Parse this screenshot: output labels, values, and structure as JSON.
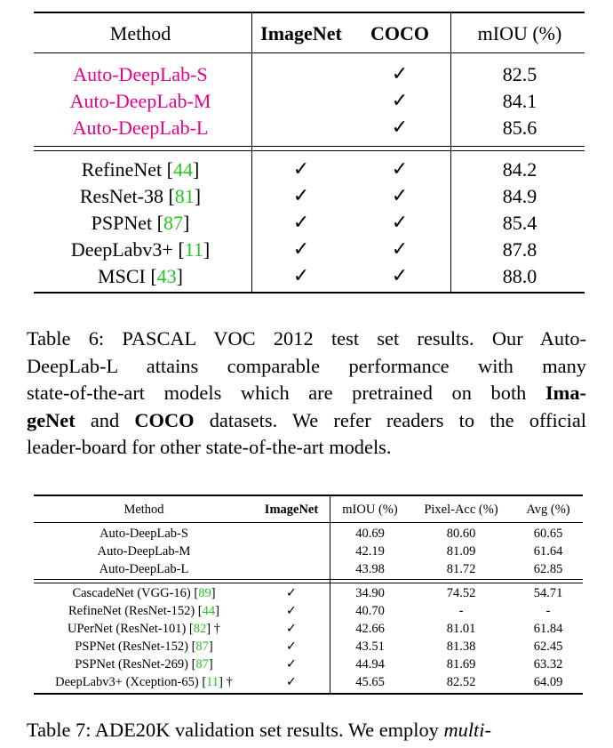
{
  "table6": {
    "headers": {
      "method": "Method",
      "imagenet": "ImageNet",
      "coco": "COCO",
      "miou": "mIOU (%)"
    },
    "check_glyph": "✓",
    "group1": [
      {
        "name": "Auto-DeepLab-S",
        "ref": "",
        "imagenet": "",
        "coco": "✓",
        "miou": "82.5"
      },
      {
        "name": "Auto-DeepLab-M",
        "ref": "",
        "imagenet": "",
        "coco": "✓",
        "miou": "84.1"
      },
      {
        "name": "Auto-DeepLab-L",
        "ref": "",
        "imagenet": "",
        "coco": "✓",
        "miou": "85.6"
      }
    ],
    "group2": [
      {
        "name": "RefineNet",
        "ref": "44",
        "imagenet": "✓",
        "coco": "✓",
        "miou": "84.2"
      },
      {
        "name": "ResNet-38",
        "ref": "81",
        "imagenet": "✓",
        "coco": "✓",
        "miou": "84.9"
      },
      {
        "name": "PSPNet",
        "ref": "87",
        "imagenet": "✓",
        "coco": "✓",
        "miou": "85.4"
      },
      {
        "name": "DeepLabv3+",
        "ref": "11",
        "imagenet": "✓",
        "coco": "✓",
        "miou": "87.8"
      },
      {
        "name": "MSCI",
        "ref": "43",
        "imagenet": "✓",
        "coco": "✓",
        "miou": "88.0"
      }
    ],
    "caption": {
      "line1": "Table 6: PASCAL VOC 2012 test set results. Our Auto-",
      "line2": "DeepLab-L attains comparable performance with many",
      "line3_pre": "state-of-the-art models which are pretrained on both ",
      "line3_bold": "Ima-",
      "line4_bold1": "geNet",
      "line4_mid": " and ",
      "line4_bold2": "COCO",
      "line4_post": " datasets. We refer readers to the official",
      "line5": "leader-board for other state-of-the-art models."
    }
  },
  "table7": {
    "headers": {
      "method": "Method",
      "imagenet": "ImageNet",
      "miou": "mIOU (%)",
      "pixacc": "Pixel-Acc (%)",
      "avg": "Avg (%)"
    },
    "group1": [
      {
        "name": "Auto-DeepLab-S",
        "ref": "",
        "suffix": "",
        "imagenet": "",
        "miou": "40.69",
        "pixacc": "80.60",
        "avg": "60.65"
      },
      {
        "name": "Auto-DeepLab-M",
        "ref": "",
        "suffix": "",
        "imagenet": "",
        "miou": "42.19",
        "pixacc": "81.09",
        "avg": "61.64"
      },
      {
        "name": "Auto-DeepLab-L",
        "ref": "",
        "suffix": "",
        "imagenet": "",
        "miou": "43.98",
        "pixacc": "81.72",
        "avg": "62.85"
      }
    ],
    "group2": [
      {
        "name": "CascadeNet (VGG-16)",
        "ref": "89",
        "suffix": "",
        "imagenet": "✓",
        "miou": "34.90",
        "pixacc": "74.52",
        "avg": "54.71"
      },
      {
        "name": "RefineNet (ResNet-152)",
        "ref": "44",
        "suffix": "",
        "imagenet": "✓",
        "miou": "40.70",
        "pixacc": "-",
        "avg": "-"
      },
      {
        "name": "UPerNet (ResNet-101)",
        "ref": "82",
        "suffix": " †",
        "imagenet": "✓",
        "miou": "42.66",
        "pixacc": "81.01",
        "avg": "61.84"
      },
      {
        "name": "PSPNet (ResNet-152)",
        "ref": "87",
        "suffix": "",
        "imagenet": "✓",
        "miou": "43.51",
        "pixacc": "81.38",
        "avg": "62.45"
      },
      {
        "name": "PSPNet (ResNet-269)",
        "ref": "87",
        "suffix": "",
        "imagenet": "✓",
        "miou": "44.94",
        "pixacc": "81.69",
        "avg": "63.32"
      },
      {
        "name": "DeepLabv3+ (Xception-65)",
        "ref": "11",
        "suffix": " †",
        "imagenet": "✓",
        "miou": "45.65",
        "pixacc": "82.52",
        "avg": "64.09"
      }
    ],
    "caption": {
      "text": "Table 7: ADE20K validation set results. We employ ",
      "italic": "multi-"
    }
  },
  "colors": {
    "auto_deeplab": "#e6008a",
    "citation": "#22c522"
  }
}
